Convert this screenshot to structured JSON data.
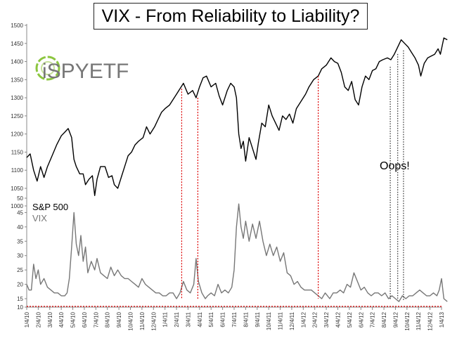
{
  "chart_data": {
    "type": "line",
    "title": "VIX - From Reliability to Liability?",
    "logo": "iSPYETF",
    "annotation": "Oops!",
    "x_tick_labels": [
      "1/4/10",
      "2/4/10",
      "3/4/10",
      "4/4/10",
      "5/4/10",
      "6/4/10",
      "7/4/10",
      "8/4/10",
      "9/4/10",
      "10/4/10",
      "11/4/10",
      "12/4/10",
      "1/4/11",
      "2/4/11",
      "3/4/11",
      "4/4/11",
      "5/4/11",
      "6/4/11",
      "7/4/11",
      "8/4/11",
      "9/4/11",
      "10/4/11",
      "11/4/11",
      "12/4/11",
      "1/4/12",
      "2/4/12",
      "3/4/12",
      "4/4/12",
      "5/4/12",
      "6/4/12",
      "7/4/12",
      "8/4/12",
      "9/4/12",
      "10/4/12",
      "11/4/12",
      "12/4/12",
      "1/4/13"
    ],
    "y_sp_ticks": [
      1000,
      1050,
      1100,
      1150,
      1200,
      1250,
      1300,
      1350,
      1400,
      1450,
      1500
    ],
    "y_vix_ticks": [
      10,
      15,
      20,
      25,
      30,
      35,
      40,
      45,
      50
    ],
    "y_sp_range": [
      1000,
      1500
    ],
    "y_vix_range": [
      10,
      50
    ],
    "series": [
      {
        "name": "S&P 500",
        "color": "#000000",
        "points": [
          [
            0,
            1135
          ],
          [
            0.3,
            1145
          ],
          [
            0.6,
            1100
          ],
          [
            0.9,
            1070
          ],
          [
            1.2,
            1110
          ],
          [
            1.5,
            1080
          ],
          [
            1.8,
            1110
          ],
          [
            2.2,
            1140
          ],
          [
            2.6,
            1170
          ],
          [
            3.0,
            1195
          ],
          [
            3.3,
            1205
          ],
          [
            3.6,
            1215
          ],
          [
            3.9,
            1190
          ],
          [
            4.1,
            1130
          ],
          [
            4.3,
            1110
          ],
          [
            4.6,
            1090
          ],
          [
            4.9,
            1090
          ],
          [
            5.1,
            1060
          ],
          [
            5.4,
            1075
          ],
          [
            5.7,
            1085
          ],
          [
            5.9,
            1030
          ],
          [
            6.1,
            1075
          ],
          [
            6.4,
            1110
          ],
          [
            6.8,
            1110
          ],
          [
            7.1,
            1080
          ],
          [
            7.4,
            1085
          ],
          [
            7.6,
            1060
          ],
          [
            7.9,
            1050
          ],
          [
            8.2,
            1080
          ],
          [
            8.5,
            1110
          ],
          [
            8.8,
            1140
          ],
          [
            9.1,
            1150
          ],
          [
            9.4,
            1170
          ],
          [
            9.7,
            1180
          ],
          [
            10.1,
            1190
          ],
          [
            10.4,
            1220
          ],
          [
            10.7,
            1200
          ],
          [
            11.1,
            1220
          ],
          [
            11.4,
            1240
          ],
          [
            11.7,
            1260
          ],
          [
            12.0,
            1270
          ],
          [
            12.4,
            1280
          ],
          [
            12.7,
            1295
          ],
          [
            13.0,
            1310
          ],
          [
            13.3,
            1325
          ],
          [
            13.6,
            1340
          ],
          [
            14.0,
            1310
          ],
          [
            14.4,
            1320
          ],
          [
            14.7,
            1300
          ],
          [
            15.0,
            1330
          ],
          [
            15.3,
            1355
          ],
          [
            15.6,
            1360
          ],
          [
            16.0,
            1330
          ],
          [
            16.4,
            1340
          ],
          [
            16.7,
            1305
          ],
          [
            17.0,
            1280
          ],
          [
            17.4,
            1320
          ],
          [
            17.7,
            1340
          ],
          [
            18.0,
            1330
          ],
          [
            18.2,
            1300
          ],
          [
            18.4,
            1200
          ],
          [
            18.6,
            1160
          ],
          [
            18.8,
            1180
          ],
          [
            19.0,
            1125
          ],
          [
            19.3,
            1190
          ],
          [
            19.6,
            1160
          ],
          [
            19.9,
            1130
          ],
          [
            20.1,
            1175
          ],
          [
            20.4,
            1230
          ],
          [
            20.7,
            1220
          ],
          [
            21.0,
            1280
          ],
          [
            21.3,
            1250
          ],
          [
            21.6,
            1230
          ],
          [
            21.9,
            1210
          ],
          [
            22.2,
            1250
          ],
          [
            22.5,
            1240
          ],
          [
            22.8,
            1255
          ],
          [
            23.1,
            1230
          ],
          [
            23.4,
            1270
          ],
          [
            23.8,
            1290
          ],
          [
            24.2,
            1310
          ],
          [
            24.5,
            1330
          ],
          [
            24.9,
            1350
          ],
          [
            25.3,
            1360
          ],
          [
            25.6,
            1380
          ],
          [
            26.0,
            1390
          ],
          [
            26.4,
            1410
          ],
          [
            26.7,
            1400
          ],
          [
            27.0,
            1395
          ],
          [
            27.3,
            1370
          ],
          [
            27.6,
            1330
          ],
          [
            27.9,
            1320
          ],
          [
            28.2,
            1345
          ],
          [
            28.5,
            1295
          ],
          [
            28.8,
            1280
          ],
          [
            29.1,
            1330
          ],
          [
            29.4,
            1360
          ],
          [
            29.7,
            1350
          ],
          [
            30.0,
            1375
          ],
          [
            30.3,
            1380
          ],
          [
            30.6,
            1400
          ],
          [
            30.9,
            1405
          ],
          [
            31.3,
            1410
          ],
          [
            31.6,
            1405
          ],
          [
            31.9,
            1420
          ],
          [
            32.2,
            1440
          ],
          [
            32.5,
            1460
          ],
          [
            32.8,
            1450
          ],
          [
            33.1,
            1440
          ],
          [
            33.4,
            1425
          ],
          [
            33.7,
            1410
          ],
          [
            34.0,
            1390
          ],
          [
            34.2,
            1360
          ],
          [
            34.5,
            1395
          ],
          [
            34.8,
            1410
          ],
          [
            35.1,
            1415
          ],
          [
            35.4,
            1420
          ],
          [
            35.7,
            1435
          ],
          [
            35.9,
            1420
          ],
          [
            36.2,
            1465
          ],
          [
            36.5,
            1460
          ]
        ]
      },
      {
        "name": "VIX",
        "color": "#777777",
        "points": [
          [
            0,
            20
          ],
          [
            0.2,
            18
          ],
          [
            0.4,
            18
          ],
          [
            0.6,
            27
          ],
          [
            0.8,
            22
          ],
          [
            1.0,
            25
          ],
          [
            1.2,
            20
          ],
          [
            1.5,
            22
          ],
          [
            1.8,
            19
          ],
          [
            2.1,
            18
          ],
          [
            2.4,
            17
          ],
          [
            2.7,
            17
          ],
          [
            3.0,
            16
          ],
          [
            3.3,
            16
          ],
          [
            3.5,
            17
          ],
          [
            3.7,
            22
          ],
          [
            3.9,
            33
          ],
          [
            4.1,
            45
          ],
          [
            4.3,
            34
          ],
          [
            4.5,
            30
          ],
          [
            4.7,
            37
          ],
          [
            4.9,
            28
          ],
          [
            5.1,
            33
          ],
          [
            5.3,
            24
          ],
          [
            5.6,
            28
          ],
          [
            5.9,
            25
          ],
          [
            6.1,
            29
          ],
          [
            6.4,
            24
          ],
          [
            6.7,
            23
          ],
          [
            7.0,
            22
          ],
          [
            7.3,
            26
          ],
          [
            7.6,
            23
          ],
          [
            7.9,
            25
          ],
          [
            8.2,
            23
          ],
          [
            8.5,
            22
          ],
          [
            8.8,
            22
          ],
          [
            9.1,
            21
          ],
          [
            9.4,
            20
          ],
          [
            9.7,
            19
          ],
          [
            10.0,
            22
          ],
          [
            10.3,
            20
          ],
          [
            10.6,
            19
          ],
          [
            10.9,
            18
          ],
          [
            11.2,
            17
          ],
          [
            11.5,
            17
          ],
          [
            11.8,
            16
          ],
          [
            12.1,
            16
          ],
          [
            12.4,
            17
          ],
          [
            12.7,
            17
          ],
          [
            13.0,
            15
          ],
          [
            13.3,
            17
          ],
          [
            13.6,
            21
          ],
          [
            13.9,
            18
          ],
          [
            14.2,
            17
          ],
          [
            14.5,
            20
          ],
          [
            14.7,
            29
          ],
          [
            14.9,
            21
          ],
          [
            15.2,
            17
          ],
          [
            15.5,
            15
          ],
          [
            15.7,
            16
          ],
          [
            16.0,
            17
          ],
          [
            16.3,
            16
          ],
          [
            16.6,
            20
          ],
          [
            16.9,
            17
          ],
          [
            17.2,
            18
          ],
          [
            17.5,
            17
          ],
          [
            17.8,
            19
          ],
          [
            18.0,
            25
          ],
          [
            18.2,
            40
          ],
          [
            18.4,
            48
          ],
          [
            18.6,
            40
          ],
          [
            18.8,
            36
          ],
          [
            19.0,
            42
          ],
          [
            19.3,
            35
          ],
          [
            19.6,
            41
          ],
          [
            19.9,
            36
          ],
          [
            20.2,
            42
          ],
          [
            20.5,
            35
          ],
          [
            20.8,
            30
          ],
          [
            21.1,
            34
          ],
          [
            21.4,
            30
          ],
          [
            21.7,
            33
          ],
          [
            22.0,
            28
          ],
          [
            22.3,
            31
          ],
          [
            22.6,
            24
          ],
          [
            22.9,
            23
          ],
          [
            23.2,
            20
          ],
          [
            23.5,
            21
          ],
          [
            23.8,
            19
          ],
          [
            24.1,
            18
          ],
          [
            24.4,
            18
          ],
          [
            24.7,
            18
          ],
          [
            25.0,
            17
          ],
          [
            25.3,
            16
          ],
          [
            25.6,
            15
          ],
          [
            25.9,
            17
          ],
          [
            26.1,
            16
          ],
          [
            26.3,
            15
          ],
          [
            26.6,
            17
          ],
          [
            26.9,
            17
          ],
          [
            27.2,
            18
          ],
          [
            27.5,
            17
          ],
          [
            27.8,
            20
          ],
          [
            28.1,
            19
          ],
          [
            28.4,
            24
          ],
          [
            28.7,
            21
          ],
          [
            29.0,
            18
          ],
          [
            29.3,
            19
          ],
          [
            29.6,
            17
          ],
          [
            29.9,
            16
          ],
          [
            30.2,
            17
          ],
          [
            30.5,
            17
          ],
          [
            30.8,
            16
          ],
          [
            31.1,
            17
          ],
          [
            31.4,
            15
          ],
          [
            31.7,
            16
          ],
          [
            32.0,
            15
          ],
          [
            32.3,
            14
          ],
          [
            32.6,
            16
          ],
          [
            32.9,
            15
          ],
          [
            33.2,
            16
          ],
          [
            33.5,
            16
          ],
          [
            33.8,
            17
          ],
          [
            34.1,
            18
          ],
          [
            34.4,
            17
          ],
          [
            34.7,
            16
          ],
          [
            35.0,
            16
          ],
          [
            35.3,
            17
          ],
          [
            35.6,
            16
          ],
          [
            35.8,
            18
          ],
          [
            36.0,
            22
          ],
          [
            36.2,
            15
          ],
          [
            36.5,
            14
          ]
        ]
      }
    ],
    "red_vlines": [
      13.45,
      14.85,
      25.3
    ],
    "black_vlines": [
      31.55,
      32.2,
      32.7
    ],
    "red_hline_vix": 12.3
  }
}
